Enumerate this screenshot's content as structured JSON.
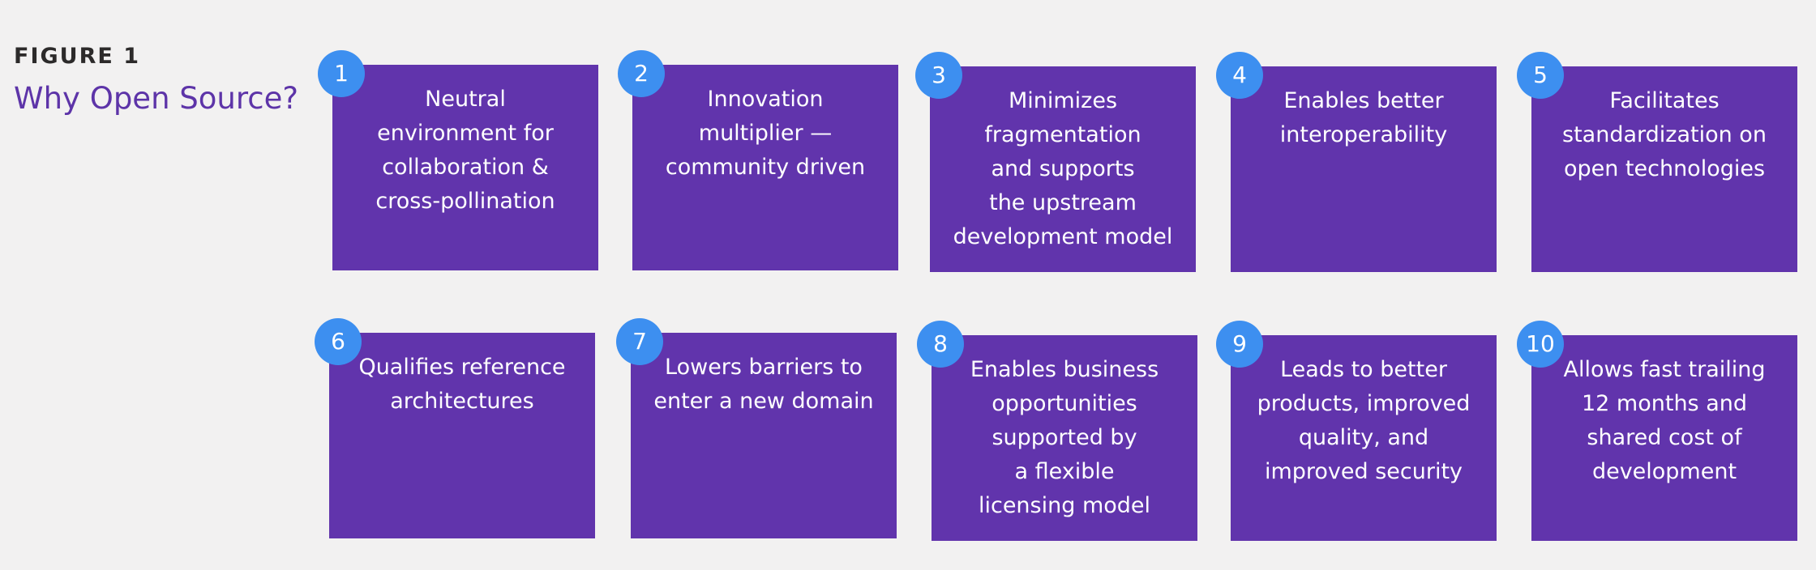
{
  "figure": {
    "label": "FIGURE 1",
    "title": "Why Open Source?"
  },
  "colors": {
    "card": "#6134ac",
    "badge": "#3d8ff0",
    "title": "#5d34a8",
    "background": "#f2f1f1"
  },
  "cards": [
    {
      "number": "1",
      "lines": [
        "Neutral",
        "environment for",
        "collaboration &",
        "cross-pollination"
      ]
    },
    {
      "number": "2",
      "lines": [
        "Innovation",
        "multiplier —",
        "community driven"
      ]
    },
    {
      "number": "3",
      "lines": [
        "Minimizes",
        "fragmentation",
        "and supports",
        "the upstream",
        "development model"
      ]
    },
    {
      "number": "4",
      "lines": [
        "Enables better",
        "interoperability"
      ]
    },
    {
      "number": "5",
      "lines": [
        "Facilitates",
        "standardization on",
        "open technologies"
      ]
    },
    {
      "number": "6",
      "lines": [
        "Qualifies reference",
        "architectures"
      ]
    },
    {
      "number": "7",
      "lines": [
        "Lowers barriers to",
        "enter a new domain"
      ]
    },
    {
      "number": "8",
      "lines": [
        "Enables business",
        "opportunities",
        "supported by",
        "a flexible",
        "licensing model"
      ]
    },
    {
      "number": "9",
      "lines": [
        "Leads to better",
        "products, improved",
        "quality, and",
        "improved security"
      ]
    },
    {
      "number": "10",
      "lines": [
        "Allows fast trailing",
        "12 months and",
        "shared cost of",
        "development"
      ]
    }
  ]
}
